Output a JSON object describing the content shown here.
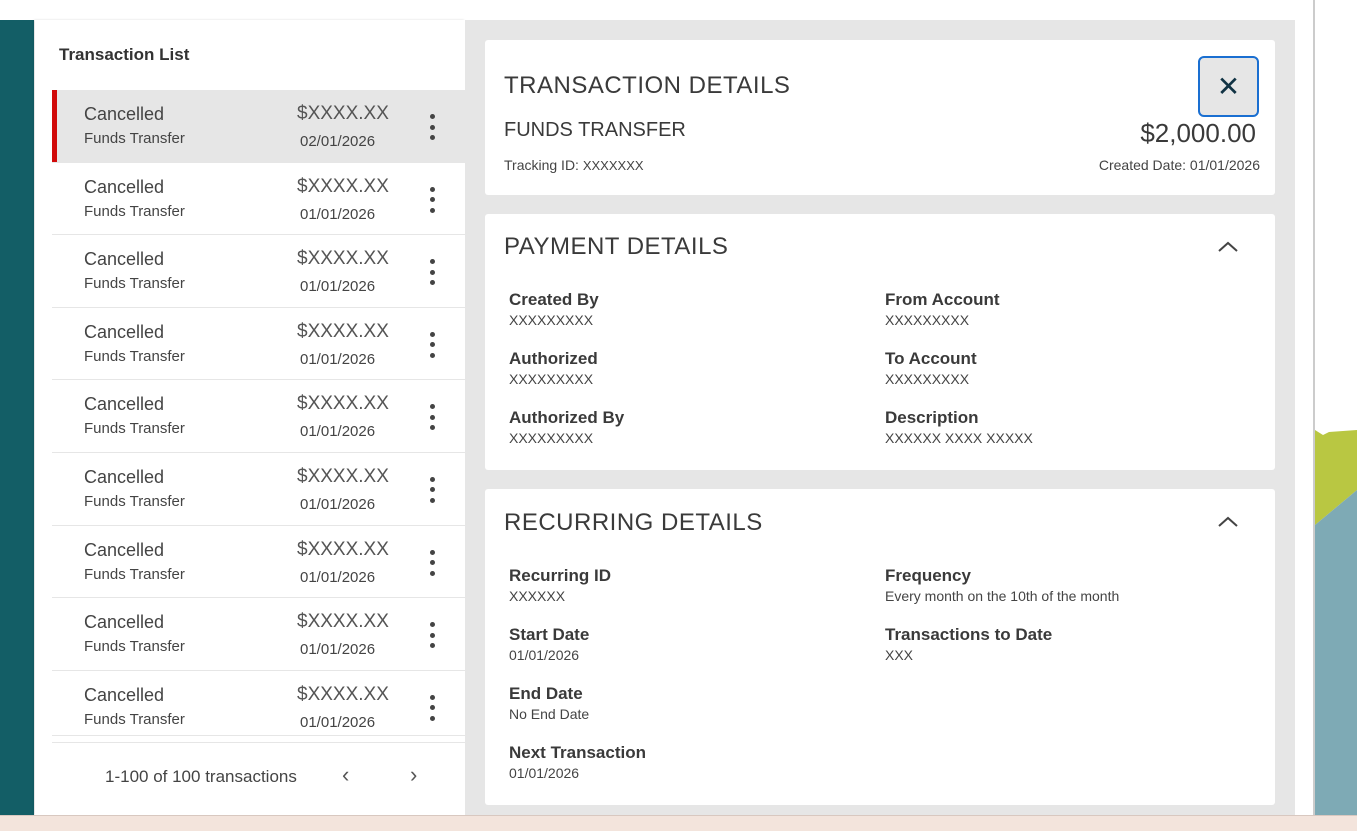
{
  "list": {
    "title": "Transaction List",
    "rows": [
      {
        "status": "Cancelled",
        "type": "Funds Transfer",
        "amount": "$XXXX.XX",
        "date": "02/01/2026",
        "selected": true
      },
      {
        "status": "Cancelled",
        "type": "Funds Transfer",
        "amount": "$XXXX.XX",
        "date": "01/01/2026"
      },
      {
        "status": "Cancelled",
        "type": "Funds Transfer",
        "amount": "$XXXX.XX",
        "date": "01/01/2026"
      },
      {
        "status": "Cancelled",
        "type": "Funds Transfer",
        "amount": "$XXXX.XX",
        "date": "01/01/2026"
      },
      {
        "status": "Cancelled",
        "type": "Funds Transfer",
        "amount": "$XXXX.XX",
        "date": "01/01/2026"
      },
      {
        "status": "Cancelled",
        "type": "Funds Transfer",
        "amount": "$XXXX.XX",
        "date": "01/01/2026"
      },
      {
        "status": "Cancelled",
        "type": "Funds Transfer",
        "amount": "$XXXX.XX",
        "date": "01/01/2026"
      },
      {
        "status": "Cancelled",
        "type": "Funds Transfer",
        "amount": "$XXXX.XX",
        "date": "01/01/2026"
      },
      {
        "status": "Cancelled",
        "type": "Funds Transfer",
        "amount": "$XXXX.XX",
        "date": "01/01/2026"
      }
    ],
    "pagination": "1-100 of 100 transactions"
  },
  "details": {
    "title": "TRANSACTION DETAILS",
    "type": "FUNDS TRANSFER",
    "amount": "$2,000.00",
    "tracking_label": "Tracking ID:",
    "tracking_value": "XXXXXXX",
    "created_label": "Created Date:",
    "created_value": "01/01/2026"
  },
  "payment": {
    "title": "PAYMENT DETAILS",
    "fields": [
      {
        "label": "Created By",
        "value": "XXXXXXXXX"
      },
      {
        "label": "From Account",
        "value": "XXXXXXXXX"
      },
      {
        "label": "Authorized",
        "value": "XXXXXXXXX"
      },
      {
        "label": "To Account",
        "value": "XXXXXXXXX"
      },
      {
        "label": "Authorized By",
        "value": "XXXXXXXXX"
      },
      {
        "label": "Description",
        "value": "XXXXXX  XXXX  XXXXX"
      }
    ]
  },
  "recurring": {
    "title": "RECURRING DETAILS",
    "fields": [
      {
        "label": "Recurring ID",
        "value": "XXXXXX"
      },
      {
        "label": "Frequency",
        "value": "Every month on the 10th of the month"
      },
      {
        "label": "Start Date",
        "value": "01/01/2026"
      },
      {
        "label": "Transactions to Date",
        "value": "XXX"
      },
      {
        "label": "End Date",
        "value": "No End Date"
      },
      {
        "label": "Next Transaction",
        "value": "01/01/2026"
      }
    ]
  },
  "colors": {
    "sidebar": "#135e66",
    "selected_marker": "#d10a0a",
    "focus": "#1a6fd1"
  }
}
